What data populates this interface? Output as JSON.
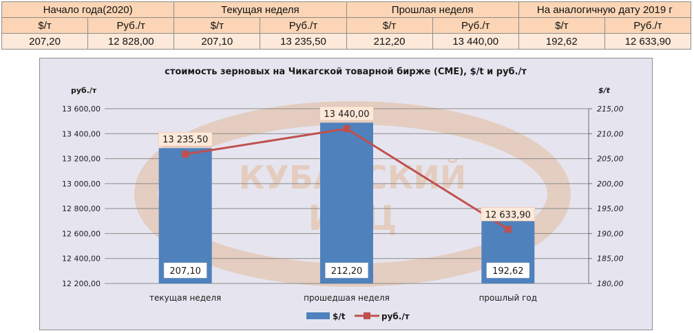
{
  "table": {
    "headers": [
      "Начало года(2020)",
      "Текущая неделя",
      "Прошлая неделя",
      "На аналогичную дату 2019 г"
    ],
    "units": [
      "$/т",
      "Руб./т",
      "$/т",
      "Руб./т",
      "$/т",
      "Руб./т",
      "$/т",
      "Руб./т"
    ],
    "values": [
      "207,20",
      "12 828,00",
      "207,10",
      "13 235,50",
      "212,20",
      "13 440,00",
      "192,62",
      "12 633,90"
    ]
  },
  "watermark": {
    "line1": "КУБАНСКИЙ",
    "line2": "ИКЦ"
  },
  "colors": {
    "bar": "#4f81bd",
    "line": "#c0504d",
    "header_bg": "#fbd5b5",
    "value_bg": "#fde9d9",
    "chart_bg": "#e6e5ef"
  },
  "chart_data": {
    "type": "bar+line",
    "title": "стоимость зерновых на Чикагской товарной бирже (CME), $/t и руб./т",
    "ylabel_left": "руб./т",
    "ylabel_right": "$/t",
    "categories": [
      "текущая неделя",
      "прошедшая неделя",
      "прошлый год"
    ],
    "series": [
      {
        "name": "$/t",
        "type": "bar",
        "axis": "right",
        "values": [
          207.1,
          212.2,
          192.62
        ],
        "labels": [
          "207,10",
          "212,20",
          "192,62"
        ]
      },
      {
        "name": "руб./т",
        "type": "line",
        "axis": "left",
        "values": [
          13235.5,
          13440.0,
          12633.9
        ],
        "labels": [
          "13 235,50",
          "13 440,00",
          "12 633,90"
        ]
      }
    ],
    "ylim_left": [
      12200,
      13600
    ],
    "ylim_right": [
      180,
      215
    ],
    "yticks_left": [
      "12 200,00",
      "12 400,00",
      "12 600,00",
      "12 800,00",
      "13 000,00",
      "13 200,00",
      "13 400,00",
      "13 600,00"
    ],
    "yticks_right": [
      "180,00",
      "185,00",
      "190,00",
      "195,00",
      "200,00",
      "205,00",
      "210,00",
      "215,00"
    ],
    "grid": true,
    "legend": "bottom"
  }
}
